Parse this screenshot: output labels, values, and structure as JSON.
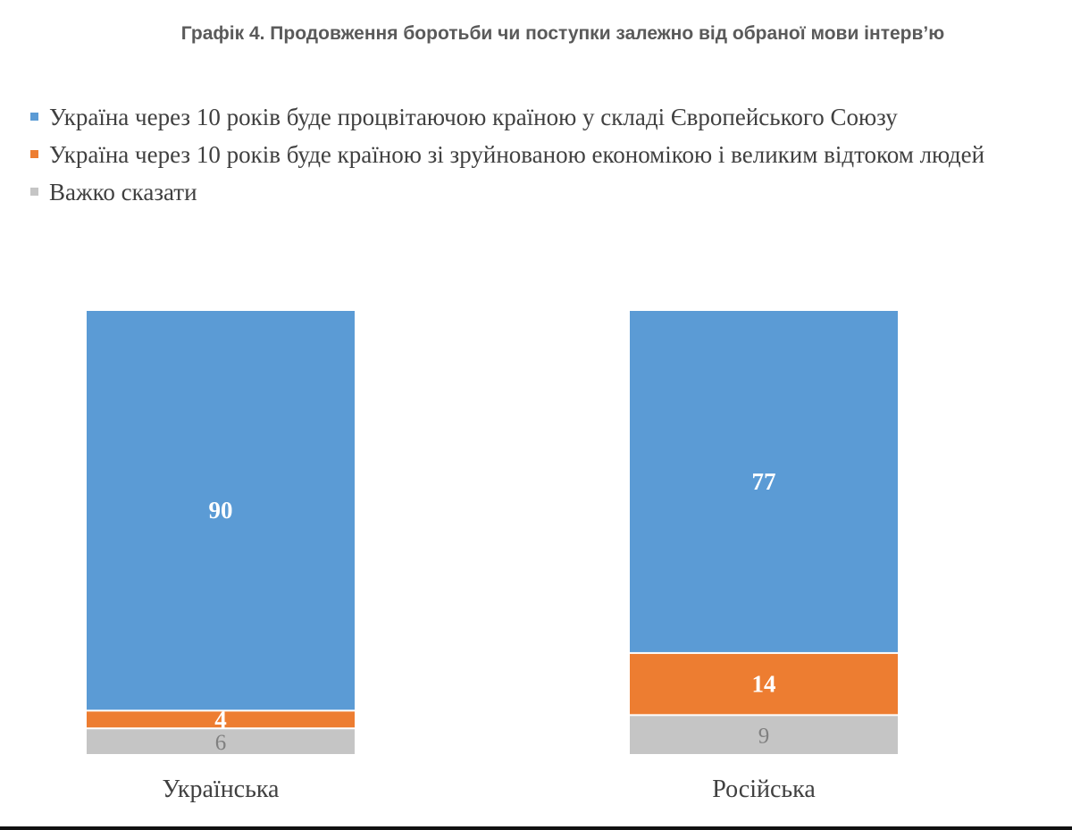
{
  "chart_data": {
    "type": "stacked-bar",
    "title": "Графік 4. Продовження боротьби чи поступки залежно від обраної мови інтерв’ю",
    "categories": [
      "Українська",
      "Російська"
    ],
    "series": [
      {
        "name": "Україна через 10 років буде процвітаючою країною у складі Європейського Союзу",
        "color": "#5b9bd5",
        "label_color": "#ffffff",
        "values": [
          90,
          77
        ]
      },
      {
        "name": "Україна через 10 років буде країною зі зруйнованою економікою і великим відтоком людей",
        "color": "#ed7d31",
        "label_color": "#ffffff",
        "values": [
          4,
          14
        ]
      },
      {
        "name": "Важко сказати",
        "color": "#c5c5c5",
        "label_color": "#808080",
        "values": [
          6,
          9
        ]
      }
    ],
    "stack_order": "bottom-up: Важко сказати, then orange, then blue",
    "ylim": [
      0,
      100
    ],
    "legend_position": "top-left"
  }
}
